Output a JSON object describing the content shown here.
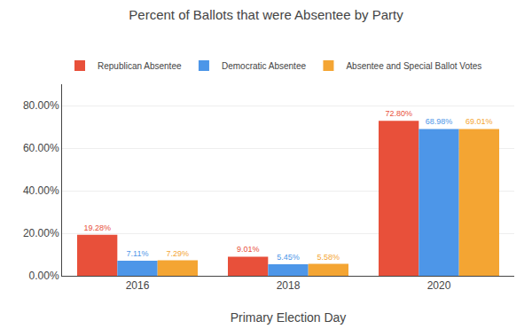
{
  "chart_data": {
    "type": "bar",
    "title": "Percent of Ballots that were Absentee by Party",
    "xlabel": "Primary Election Day",
    "categories": [
      "2016",
      "2018",
      "2020"
    ],
    "series": [
      {
        "name": "Republican Absentee",
        "color": "#E8503A",
        "values": [
          19.28,
          9.01,
          72.8
        ],
        "value_labels": [
          "19.28%",
          "9.01%",
          "72.80%"
        ]
      },
      {
        "name": "Democratic Absentee",
        "color": "#4D96E8",
        "values": [
          7.11,
          5.45,
          68.98
        ],
        "value_labels": [
          "7.11%",
          "5.45%",
          "68.98%"
        ]
      },
      {
        "name": "Absentee and Special Ballot Votes",
        "color": "#F4A533",
        "values": [
          7.29,
          5.58,
          69.01
        ],
        "value_labels": [
          "7.29%",
          "5.58%",
          "69.01%"
        ]
      }
    ],
    "ylim": [
      0,
      90
    ],
    "yticks": [
      {
        "value": 0,
        "label": "0.00%"
      },
      {
        "value": 20,
        "label": "20.00%"
      },
      {
        "value": 40,
        "label": "40.00%"
      },
      {
        "value": 60,
        "label": "60.00%"
      },
      {
        "value": 80,
        "label": "80.00%"
      }
    ],
    "grid": true,
    "data_labels": true,
    "legend": "upper left"
  }
}
